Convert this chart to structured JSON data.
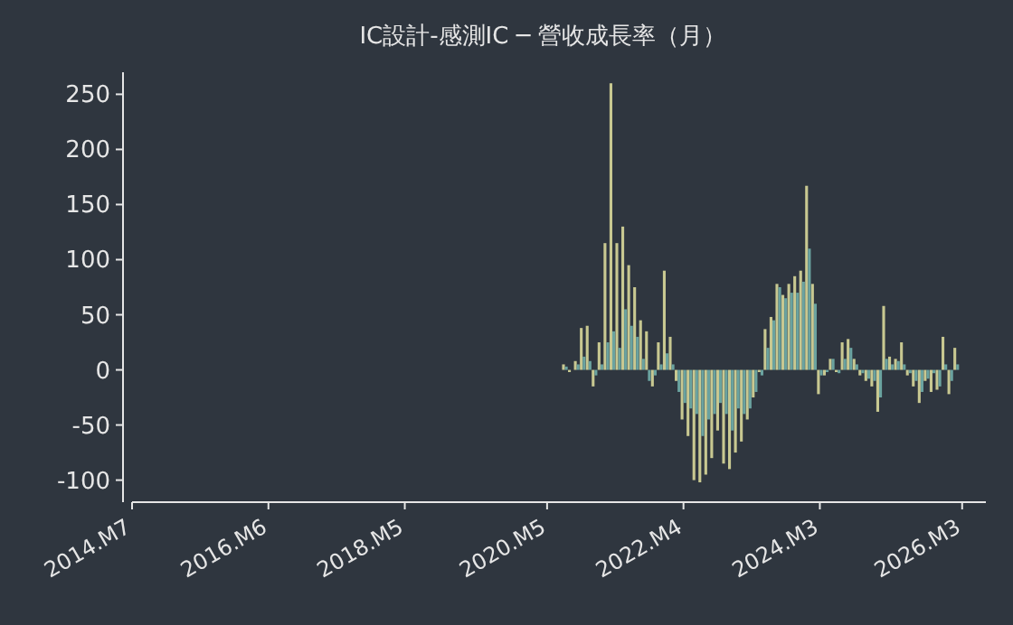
{
  "chart_data": {
    "type": "bar",
    "title": "IC設計-感測IC ─ 營收成長率（月）",
    "x": [
      "2020-08",
      "2020-09",
      "2020-10",
      "2020-11",
      "2020-12",
      "2021-01",
      "2021-02",
      "2021-03",
      "2021-04",
      "2021-05",
      "2021-06",
      "2021-07",
      "2021-08",
      "2021-09",
      "2021-10",
      "2021-11",
      "2021-12",
      "2022-01",
      "2022-02",
      "2022-03",
      "2022-04",
      "2022-05",
      "2022-06",
      "2022-07",
      "2022-08",
      "2022-09",
      "2022-10",
      "2022-11",
      "2022-12",
      "2023-01",
      "2023-02",
      "2023-03",
      "2023-04",
      "2023-05",
      "2023-06",
      "2023-07",
      "2023-08",
      "2023-09",
      "2023-10",
      "2023-11",
      "2023-12",
      "2024-01",
      "2024-02",
      "2024-03",
      "2024-04",
      "2024-05",
      "2024-06",
      "2024-07",
      "2024-08",
      "2024-09",
      "2024-10",
      "2024-11",
      "2024-12",
      "2025-01",
      "2025-02",
      "2025-03",
      "2025-04",
      "2025-05",
      "2025-06",
      "2025-07",
      "2025-08",
      "2025-09",
      "2025-10",
      "2025-11",
      "2025-12",
      "2026-01",
      "2026-02"
    ],
    "series": [
      {
        "color": "#c8c891",
        "values": [
          5,
          -2,
          8,
          38,
          40,
          -15,
          25,
          115,
          260,
          115,
          130,
          95,
          75,
          45,
          35,
          -15,
          25,
          90,
          30,
          -10,
          -45,
          -60,
          -100,
          -102,
          -95,
          -80,
          -55,
          -85,
          -90,
          -75,
          -65,
          -45,
          -25,
          -2,
          37,
          48,
          78,
          68,
          78,
          85,
          90,
          167,
          78,
          -22,
          -5,
          10,
          -2,
          25,
          28,
          10,
          -5,
          -10,
          -15,
          -38,
          58,
          12,
          10,
          25,
          -5,
          -15,
          -30,
          -10,
          -20,
          -18,
          30,
          -22,
          20
        ]
      },
      {
        "color": "#6aa3a0",
        "values": [
          3,
          0,
          5,
          12,
          8,
          -5,
          5,
          25,
          35,
          20,
          55,
          40,
          30,
          10,
          -10,
          -5,
          5,
          15,
          5,
          -20,
          -30,
          -35,
          -40,
          -60,
          -45,
          -40,
          -30,
          -40,
          -55,
          -35,
          -40,
          -35,
          -20,
          -5,
          20,
          45,
          75,
          65,
          70,
          70,
          80,
          110,
          60,
          -5,
          -2,
          10,
          -3,
          10,
          20,
          5,
          -3,
          -8,
          -10,
          -25,
          10,
          5,
          8,
          5,
          -3,
          -10,
          -20,
          -8,
          -3,
          -15,
          5,
          -10,
          5
        ]
      }
    ],
    "xlim": [
      "2014-07",
      "2026-07"
    ],
    "xticks": [
      {
        "value": "2014-07",
        "label": "2014.M7"
      },
      {
        "value": "2016-06",
        "label": "2016.M6"
      },
      {
        "value": "2018-05",
        "label": "2018.M5"
      },
      {
        "value": "2020-05",
        "label": "2020.M5"
      },
      {
        "value": "2022-04",
        "label": "2022.M4"
      },
      {
        "value": "2024-03",
        "label": "2024.M3"
      },
      {
        "value": "2026-03",
        "label": "2026.M3"
      }
    ],
    "ylim": [
      -120,
      270
    ],
    "yticks": [
      -100,
      -50,
      0,
      50,
      100,
      150,
      200,
      250
    ]
  }
}
